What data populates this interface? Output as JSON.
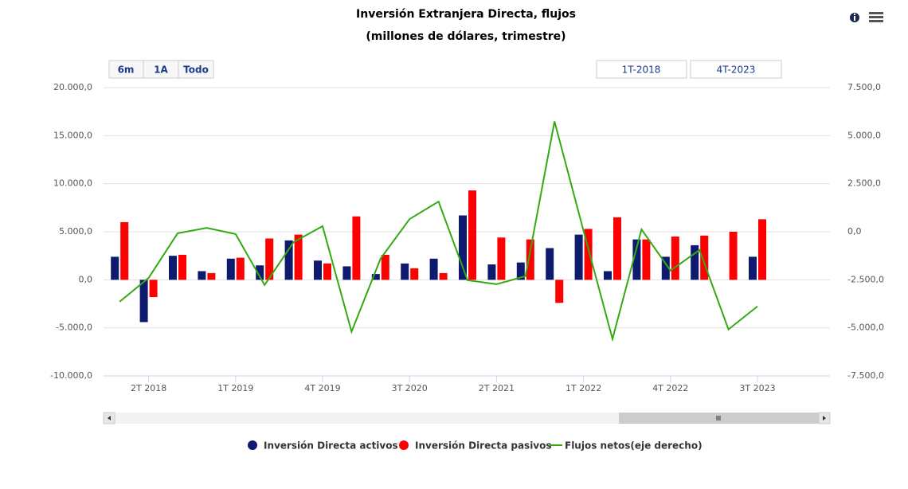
{
  "chart_data": {
    "type": "bar_line",
    "title": "Inversión Extranjera Directa, flujos",
    "subtitle": "(millones de dólares, trimestre)",
    "categories": [
      null,
      "2T 2018",
      null,
      null,
      "1T 2019",
      null,
      null,
      "4T 2019",
      null,
      null,
      "3T 2020",
      null,
      null,
      "2T 2021",
      null,
      null,
      "1T 2022",
      null,
      null,
      "4T 2022",
      null,
      null,
      "3T 2023"
    ],
    "series": [
      {
        "name": "Inversión Directa activos",
        "type": "bar",
        "color": "#0d1a6e",
        "values": [
          2400,
          -4400,
          2500,
          900,
          2200,
          1500,
          4100,
          2000,
          1400,
          600,
          1700,
          2200,
          6700,
          1600,
          1800,
          3300,
          4700,
          900,
          4200,
          2400,
          3600,
          null,
          2400
        ]
      },
      {
        "name": "Inversión Directa pasivos",
        "type": "bar",
        "color": "#ff0000",
        "values": [
          6000,
          -1800,
          2600,
          700,
          2300,
          4300,
          4700,
          1700,
          6600,
          2600,
          1200,
          700,
          9300,
          4400,
          4200,
          -2400,
          5300,
          6500,
          4200,
          4500,
          4600,
          5000,
          6300
        ]
      },
      {
        "name": "Flujos netos(eje derecho)",
        "type": "line",
        "axis": "y2",
        "color": "#33aa11",
        "values": [
          -3640,
          -2400,
          -80,
          200,
          -120,
          -2770,
          -540,
          290,
          -5200,
          -1400,
          660,
          1570,
          -2520,
          -2730,
          -2310,
          5740,
          50,
          -5580,
          120,
          -2020,
          -950,
          -5080,
          -3880
        ]
      }
    ],
    "ylim": [
      -10000,
      20000
    ],
    "yticks": [
      {
        "value": -10000,
        "label": "-10.000,0"
      },
      {
        "value": -5000,
        "label": "-5.000,0"
      },
      {
        "value": 0,
        "label": "0,0"
      },
      {
        "value": 5000,
        "label": "5.000,0"
      },
      {
        "value": 10000,
        "label": "10.000,0"
      },
      {
        "value": 15000,
        "label": "15.000,0"
      },
      {
        "value": 20000,
        "label": "20.000,0"
      }
    ],
    "y2lim": [
      -7500,
      7500
    ],
    "y2ticks": [
      {
        "value": -7500,
        "label": "-7.500,0"
      },
      {
        "value": -5000,
        "label": "-5.000,0"
      },
      {
        "value": -2500,
        "label": "-2.500,0"
      },
      {
        "value": 0,
        "label": "0,0"
      },
      {
        "value": 2500,
        "label": "2.500,0"
      },
      {
        "value": 5000,
        "label": "5.000,0"
      },
      {
        "value": 7500,
        "label": "7.500,0"
      }
    ],
    "grid": true,
    "legend": "bottom"
  },
  "controls": {
    "range_buttons": [
      "6m",
      "1A",
      "Todo"
    ],
    "date_from": "1T-2018",
    "date_to": "4T-2023"
  }
}
